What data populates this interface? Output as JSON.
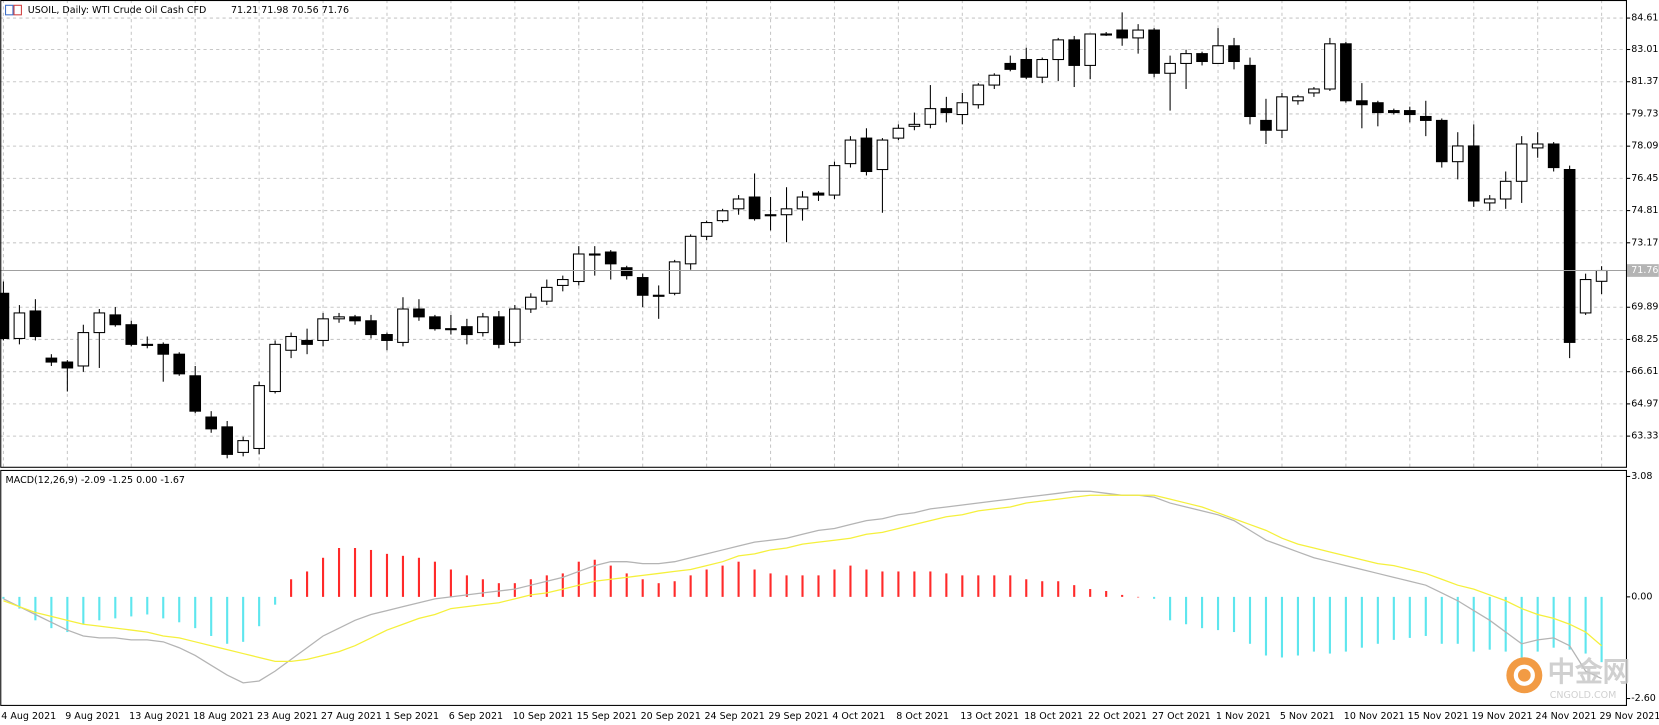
{
  "chart_data": [
    {
      "type": "candlestick",
      "title": "USOIL, Daily: WTI Crude Oil Cash CFD",
      "ohlc_label": "71.21 71.98 70.56 71.76",
      "categories": [
        "4 Aug 2021",
        null,
        null,
        null,
        "9 Aug 2021",
        null,
        null,
        null,
        "13 Aug 2021",
        null,
        null,
        null,
        "18 Aug 2021",
        null,
        null,
        null,
        "23 Aug 2021",
        null,
        null,
        null,
        "27 Aug 2021",
        null,
        null,
        null,
        "1 Sep 2021",
        null,
        null,
        null,
        "6 Sep 2021",
        null,
        null,
        null,
        "10 Sep 2021",
        null,
        null,
        null,
        "15 Sep 2021",
        null,
        null,
        null,
        "20 Sep 2021",
        null,
        null,
        null,
        "24 Sep 2021",
        null,
        null,
        null,
        "29 Sep 2021",
        null,
        null,
        null,
        "4 Oct 2021",
        null,
        null,
        null,
        "8 Oct 2021",
        null,
        null,
        null,
        "13 Oct 2021",
        null,
        null,
        null,
        "18 Oct 2021",
        null,
        null,
        null,
        "22 Oct 2021",
        null,
        null,
        null,
        "27 Oct 2021",
        null,
        null,
        null,
        "1 Nov 2021",
        null,
        null,
        null,
        "5 Nov 2021",
        null,
        null,
        null,
        "10 Nov 2021",
        null,
        null,
        null,
        "15 Nov 2021",
        null,
        null,
        null,
        "19 Nov 2021",
        null,
        null,
        null,
        "24 Nov 2021",
        null,
        null,
        null,
        "29 Nov 2021"
      ],
      "open": [
        70.6,
        68.3,
        69.7,
        67.3,
        67.1,
        66.9,
        68.6,
        69.5,
        69.0,
        68.0,
        68.0,
        67.5,
        66.4,
        64.3,
        63.8,
        62.5,
        62.7,
        65.6,
        67.7,
        68.2,
        68.2,
        69.3,
        69.4,
        69.2,
        68.5,
        68.1,
        69.8,
        69.4,
        68.8,
        68.9,
        68.6,
        69.4,
        68.1,
        69.8,
        70.2,
        71.0,
        71.2,
        72.6,
        72.7,
        71.9,
        71.4,
        70.5,
        70.6,
        72.1,
        73.5,
        74.3,
        74.9,
        75.5,
        74.6,
        74.6,
        74.9,
        75.7,
        75.6,
        77.2,
        78.5,
        76.9,
        78.5,
        79.1,
        79.2,
        80.0,
        79.7,
        80.2,
        81.2,
        82.3,
        82.5,
        81.6,
        82.5,
        83.5,
        82.2,
        83.8,
        84.0,
        83.6,
        84.0,
        81.8,
        82.3,
        82.8,
        82.3,
        83.2,
        82.2,
        79.4,
        78.9,
        80.4,
        80.8,
        81.0,
        83.3,
        80.4,
        80.3,
        79.9,
        79.9,
        79.6,
        79.4,
        77.3,
        78.1,
        75.2,
        75.4,
        76.3,
        78.0,
        78.2,
        76.9,
        69.6,
        71.21
      ],
      "high": [
        71.2,
        70.0,
        70.3,
        67.5,
        67.2,
        69.0,
        69.8,
        69.9,
        69.2,
        68.4,
        68.1,
        67.6,
        66.9,
        64.6,
        64.1,
        63.3,
        66.1,
        68.2,
        68.6,
        68.8,
        69.6,
        69.6,
        69.5,
        69.5,
        68.6,
        70.4,
        70.3,
        69.5,
        69.5,
        69.3,
        69.6,
        69.7,
        70.0,
        70.6,
        71.3,
        71.5,
        73.0,
        73.0,
        72.8,
        72.0,
        71.6,
        71.0,
        72.3,
        73.6,
        74.3,
        74.9,
        75.6,
        76.7,
        75.5,
        76.0,
        75.8,
        75.8,
        77.3,
        78.6,
        79.0,
        78.5,
        79.2,
        79.8,
        81.2,
        80.6,
        80.8,
        81.3,
        81.8,
        82.7,
        83.1,
        82.6,
        83.6,
        83.7,
        83.8,
        83.9,
        84.9,
        84.3,
        84.1,
        82.7,
        83.0,
        82.9,
        84.1,
        83.6,
        82.6,
        80.5,
        80.8,
        80.7,
        81.1,
        83.6,
        83.4,
        81.3,
        80.4,
        80.0,
        80.1,
        80.4,
        79.5,
        78.8,
        79.2,
        75.6,
        76.8,
        78.6,
        78.8,
        78.3,
        77.1,
        71.6,
        71.98
      ],
      "low": [
        68.2,
        68.0,
        68.2,
        66.9,
        65.6,
        66.6,
        66.8,
        68.9,
        67.9,
        67.8,
        66.1,
        66.4,
        64.5,
        63.5,
        62.2,
        62.3,
        62.4,
        65.5,
        67.3,
        67.5,
        67.9,
        69.1,
        69.0,
        68.3,
        67.7,
        67.9,
        69.2,
        68.7,
        68.5,
        68.0,
        68.4,
        67.8,
        67.9,
        69.6,
        70.0,
        70.7,
        71.0,
        71.5,
        71.3,
        71.3,
        69.9,
        69.3,
        70.5,
        71.8,
        73.3,
        74.2,
        74.6,
        74.3,
        73.8,
        73.2,
        74.3,
        75.3,
        75.4,
        77.0,
        76.6,
        74.7,
        78.4,
        78.9,
        79.0,
        79.3,
        79.2,
        80.0,
        81.0,
        81.9,
        81.5,
        81.3,
        81.4,
        81.1,
        81.5,
        83.7,
        83.2,
        82.8,
        81.6,
        79.9,
        81.0,
        82.2,
        82.3,
        82.0,
        79.2,
        78.2,
        78.5,
        80.2,
        80.6,
        80.9,
        80.3,
        79.0,
        79.1,
        79.7,
        79.3,
        78.6,
        77.0,
        76.4,
        75.0,
        74.8,
        74.9,
        75.2,
        77.5,
        76.8,
        67.3,
        69.5,
        70.56
      ],
      "close": [
        68.3,
        69.6,
        68.4,
        67.1,
        66.8,
        68.6,
        69.6,
        69.0,
        68.0,
        68.0,
        67.5,
        66.5,
        64.6,
        63.7,
        62.4,
        63.1,
        65.9,
        68.0,
        68.4,
        68.0,
        69.3,
        69.4,
        69.2,
        68.5,
        68.2,
        69.8,
        69.4,
        68.8,
        68.8,
        68.5,
        69.4,
        68.0,
        69.8,
        70.4,
        70.9,
        71.3,
        72.6,
        72.6,
        72.1,
        71.5,
        70.5,
        70.5,
        72.2,
        73.5,
        74.2,
        74.8,
        75.4,
        74.4,
        74.6,
        74.9,
        75.5,
        75.6,
        77.1,
        78.4,
        76.8,
        78.4,
        79.0,
        79.2,
        80.0,
        79.8,
        80.3,
        81.2,
        81.7,
        82.0,
        81.6,
        82.5,
        83.5,
        82.2,
        83.8,
        83.8,
        83.6,
        84.0,
        81.8,
        82.3,
        82.8,
        82.4,
        83.2,
        82.4,
        79.6,
        78.9,
        80.6,
        80.6,
        81.0,
        83.3,
        80.4,
        80.2,
        79.8,
        79.8,
        79.7,
        79.4,
        77.3,
        78.1,
        75.3,
        75.4,
        76.3,
        78.2,
        78.2,
        77.0,
        68.1,
        71.3,
        71.76
      ],
      "up_color": "#ffffff",
      "down_color": "#000000",
      "current_price": 71.76,
      "ylim": [
        61.77,
        85.53
      ],
      "yticks": [
        84.61,
        83.01,
        81.37,
        79.73,
        78.09,
        76.45,
        74.81,
        73.17,
        69.89,
        68.25,
        66.61,
        64.97,
        63.33
      ],
      "grid": true
    },
    {
      "type": "macd",
      "title": "MACD(12,26,9) -2.09 -1.25 0.00 -1.67",
      "histogram": {
        "up_color": "#ff2a2a",
        "down_color": "#5ee6ee",
        "values": [
          -0.05,
          -0.3,
          -0.6,
          -0.8,
          -0.9,
          -0.7,
          -0.6,
          -0.55,
          -0.5,
          -0.45,
          -0.55,
          -0.65,
          -0.8,
          -1.0,
          -1.2,
          -1.15,
          -0.75,
          -0.2,
          0.45,
          0.65,
          1.0,
          1.25,
          1.25,
          1.2,
          1.1,
          1.05,
          1.0,
          0.9,
          0.7,
          0.55,
          0.45,
          0.35,
          0.35,
          0.45,
          0.55,
          0.6,
          0.9,
          0.95,
          0.8,
          0.6,
          0.45,
          0.35,
          0.4,
          0.55,
          0.7,
          0.8,
          0.9,
          0.7,
          0.6,
          0.55,
          0.55,
          0.55,
          0.7,
          0.8,
          0.7,
          0.65,
          0.65,
          0.65,
          0.65,
          0.6,
          0.55,
          0.55,
          0.55,
          0.55,
          0.45,
          0.4,
          0.4,
          0.3,
          0.2,
          0.15,
          0.05,
          0.0,
          -0.05,
          -0.6,
          -0.7,
          -0.8,
          -0.85,
          -0.9,
          -1.2,
          -1.5,
          -1.55,
          -1.5,
          -1.4,
          -1.45,
          -1.4,
          -1.3,
          -1.2,
          -1.1,
          -1.05,
          -1.0,
          -1.2,
          -1.2,
          -1.4,
          -1.35,
          -1.4,
          -1.55,
          -1.4,
          -1.3,
          -1.35,
          -1.45,
          -1.67
        ]
      },
      "series": [
        {
          "color": "#b4b4b4",
          "values": [
            -0.05,
            -0.25,
            -0.45,
            -0.65,
            -0.85,
            -1.0,
            -1.05,
            -1.05,
            -1.1,
            -1.1,
            -1.15,
            -1.3,
            -1.5,
            -1.75,
            -2.0,
            -2.2,
            -2.15,
            -1.9,
            -1.6,
            -1.3,
            -1.0,
            -0.8,
            -0.6,
            -0.45,
            -0.35,
            -0.25,
            -0.15,
            -0.05,
            0.0,
            0.05,
            0.1,
            0.15,
            0.2,
            0.3,
            0.4,
            0.5,
            0.65,
            0.8,
            0.9,
            0.9,
            0.85,
            0.85,
            0.9,
            1.0,
            1.1,
            1.2,
            1.3,
            1.4,
            1.45,
            1.5,
            1.6,
            1.7,
            1.75,
            1.85,
            1.95,
            2.0,
            2.1,
            2.15,
            2.25,
            2.3,
            2.35,
            2.4,
            2.45,
            2.5,
            2.55,
            2.6,
            2.65,
            2.7,
            2.7,
            2.65,
            2.6,
            2.6,
            2.55,
            2.4,
            2.3,
            2.2,
            2.1,
            1.95,
            1.7,
            1.45,
            1.3,
            1.15,
            1.0,
            0.9,
            0.8,
            0.7,
            0.6,
            0.5,
            0.4,
            0.3,
            0.1,
            -0.1,
            -0.35,
            -0.6,
            -0.9,
            -1.2,
            -1.1,
            -1.05,
            -1.25,
            -1.9,
            -2.09
          ]
        },
        {
          "color": "#f5f03c",
          "values": [
            -0.1,
            -0.25,
            -0.4,
            -0.5,
            -0.6,
            -0.7,
            -0.75,
            -0.8,
            -0.85,
            -0.9,
            -1.0,
            -1.05,
            -1.15,
            -1.25,
            -1.35,
            -1.45,
            -1.55,
            -1.65,
            -1.65,
            -1.6,
            -1.5,
            -1.4,
            -1.25,
            -1.05,
            -0.85,
            -0.7,
            -0.55,
            -0.45,
            -0.3,
            -0.25,
            -0.2,
            -0.15,
            -0.05,
            0.05,
            0.1,
            0.2,
            0.3,
            0.4,
            0.45,
            0.5,
            0.55,
            0.6,
            0.65,
            0.7,
            0.8,
            0.9,
            1.05,
            1.1,
            1.2,
            1.25,
            1.35,
            1.4,
            1.45,
            1.5,
            1.6,
            1.65,
            1.75,
            1.85,
            1.95,
            2.05,
            2.1,
            2.2,
            2.25,
            2.3,
            2.4,
            2.45,
            2.5,
            2.55,
            2.6,
            2.6,
            2.6,
            2.6,
            2.6,
            2.5,
            2.4,
            2.3,
            2.15,
            2.0,
            1.85,
            1.7,
            1.5,
            1.35,
            1.25,
            1.15,
            1.05,
            0.95,
            0.85,
            0.8,
            0.7,
            0.6,
            0.45,
            0.3,
            0.2,
            0.05,
            -0.1,
            -0.3,
            -0.45,
            -0.55,
            -0.7,
            -0.9,
            -1.25
          ]
        }
      ],
      "ylim": [
        -2.79,
        3.22
      ],
      "yticks": [
        3.08,
        {
          "value": 0,
          "label": "0.00"
        },
        {
          "value": -2.6,
          "label": "-2.60"
        }
      ],
      "grid": false
    }
  ],
  "watermark": {
    "name": "中金网",
    "domain": "CNGOLD.COM"
  }
}
